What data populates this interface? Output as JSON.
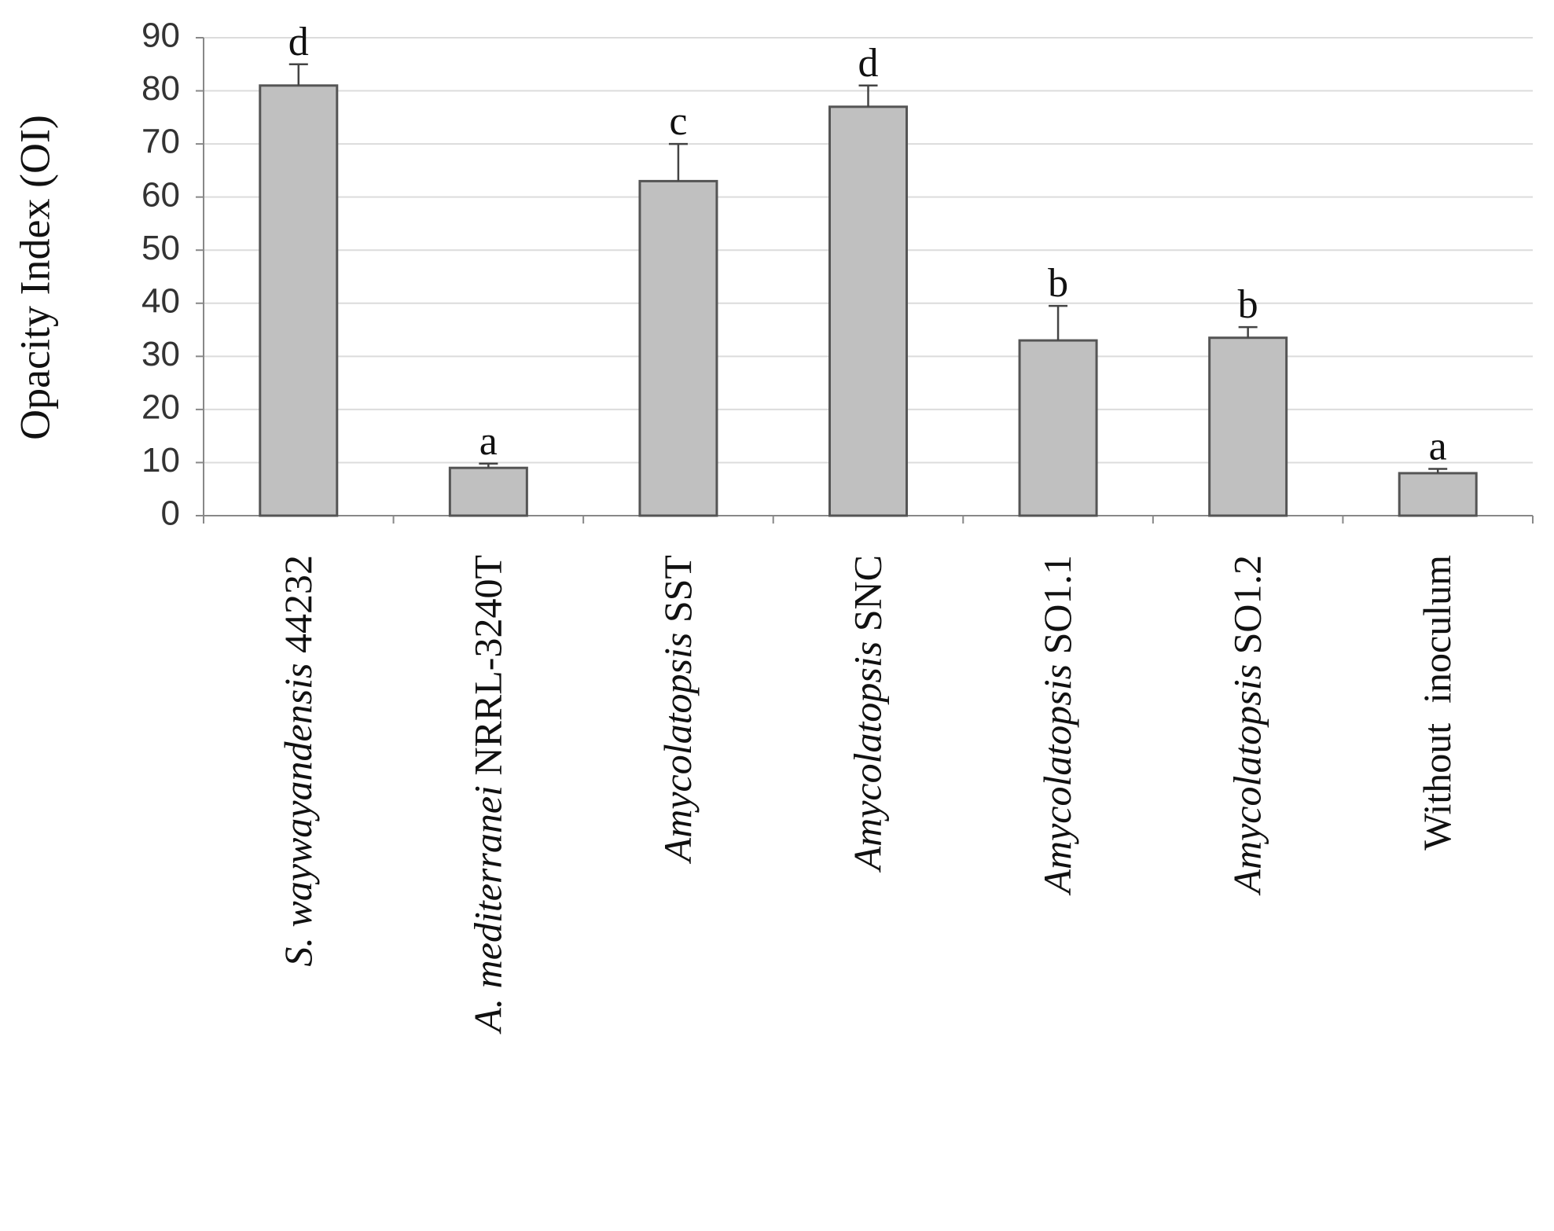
{
  "chart_data": {
    "type": "bar",
    "y_label": "Opacity Index (OI)",
    "categories": [
      [
        {
          "text": "S. waywayandensis ",
          "italic": true
        },
        {
          "text": "44232",
          "italic": false
        }
      ],
      [
        {
          "text": "A. mediterranei ",
          "italic": true
        },
        {
          "text": "NRRL-3240T",
          "italic": false
        }
      ],
      [
        {
          "text": "Amycolatopsis ",
          "italic": true
        },
        {
          "text": "SST",
          "italic": false
        }
      ],
      [
        {
          "text": "Amycolatopsis ",
          "italic": true
        },
        {
          "text": "SNC",
          "italic": false
        }
      ],
      [
        {
          "text": "Amycolatopsis ",
          "italic": true
        },
        {
          "text": "SO1.1",
          "italic": false
        }
      ],
      [
        {
          "text": "Amycolatopsis ",
          "italic": true
        },
        {
          "text": "SO1.2",
          "italic": false
        }
      ],
      [
        {
          "text": "Without  inoculum",
          "italic": false
        }
      ]
    ],
    "values": [
      81,
      9,
      63,
      77,
      33,
      33.5,
      8
    ],
    "errors": [
      4,
      0.8,
      7,
      4,
      6.5,
      2,
      0.8
    ],
    "letters": [
      "d",
      "a",
      "c",
      "d",
      "b",
      "b",
      "a"
    ],
    "color": "#c0c0c0",
    "ylim": [
      0,
      90
    ],
    "yticks": [
      0,
      10,
      20,
      30,
      40,
      50,
      60,
      70,
      80,
      90
    ],
    "grid": true
  }
}
